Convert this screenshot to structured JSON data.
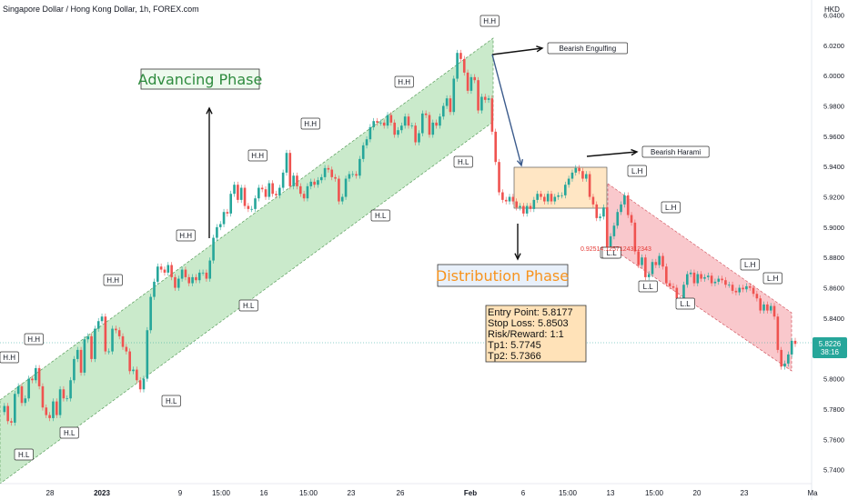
{
  "header": {
    "title": "Singapore Dollar / Hong Kong Dollar, 1h, FOREX.com",
    "currency": "HKD"
  },
  "chart_data": {
    "type": "line",
    "title": "Singapore Dollar / Hong Kong Dollar, 1h, FOREX.com",
    "ylabel": "HKD",
    "ylim": [
      5.735,
      6.045
    ],
    "y_ticks": [
      "6.0400",
      "6.0200",
      "6.0000",
      "5.9800",
      "5.9600",
      "5.9400",
      "5.9200",
      "5.9000",
      "5.8800",
      "5.8600",
      "5.8400",
      "5.8200",
      "5.8000",
      "5.7800",
      "5.7600",
      "5.7400"
    ],
    "x_ticks": [
      "28",
      "2023",
      "9",
      "15:00",
      "16",
      "15:00",
      "23",
      "26",
      "Feb",
      "6",
      "15:00",
      "13",
      "15:00",
      "20",
      "23",
      "Ma"
    ],
    "series": [
      {
        "values": [
          5.778,
          5.782,
          5.772,
          5.771,
          5.79,
          5.795,
          5.784,
          5.787,
          5.8,
          5.799,
          5.807,
          5.795,
          5.781,
          5.776,
          5.774,
          5.785,
          5.776,
          5.793,
          5.787,
          5.787,
          5.799,
          5.813,
          5.819,
          5.804,
          5.826,
          5.828,
          5.813,
          5.833,
          5.838,
          5.841,
          5.818,
          5.818,
          5.833,
          5.832,
          5.828,
          5.821,
          5.818,
          5.805,
          5.806,
          5.799,
          5.793,
          5.8,
          5.832,
          5.854,
          5.864,
          5.874,
          5.872,
          5.87,
          5.875,
          5.867,
          5.86,
          5.866,
          5.872,
          5.867,
          5.863,
          5.867,
          5.865,
          5.87,
          5.87,
          5.866,
          5.878,
          5.893,
          5.9,
          5.902,
          5.91,
          5.909,
          5.922,
          5.928,
          5.918,
          5.926,
          5.914,
          5.912,
          5.912,
          5.919,
          5.926,
          5.925,
          5.92,
          5.929,
          5.922,
          5.921,
          5.926,
          5.936,
          5.949,
          5.927,
          5.934,
          5.927,
          5.922,
          5.919,
          5.927,
          5.93,
          5.928,
          5.931,
          5.933,
          5.939,
          5.938,
          5.933,
          5.932,
          5.917,
          5.92,
          5.932,
          5.935,
          5.935,
          5.934,
          5.945,
          5.954,
          5.958,
          5.966,
          5.97,
          5.969,
          5.969,
          5.967,
          5.974,
          5.969,
          5.961,
          5.964,
          5.967,
          5.973,
          5.967,
          5.967,
          5.956,
          5.962,
          5.975,
          5.974,
          5.961,
          5.969,
          5.967,
          5.973,
          5.98,
          5.985,
          5.976,
          5.998,
          6.015,
          6.011,
          6.002,
          5.99,
          5.999,
          5.997,
          5.977,
          5.986,
          5.984,
          5.985,
          5.963,
          5.943,
          5.923,
          5.918,
          5.917,
          5.92,
          5.917,
          5.913,
          5.914,
          5.909,
          5.914,
          5.912,
          5.918,
          5.922,
          5.92,
          5.917,
          5.922,
          5.917,
          5.92,
          5.921,
          5.921,
          5.928,
          5.932,
          5.936,
          5.939,
          5.937,
          5.932,
          5.935,
          5.92,
          5.915,
          5.906,
          5.907,
          5.913,
          5.886,
          5.894,
          5.901,
          5.91,
          5.915,
          5.921,
          5.908,
          5.903,
          5.884,
          5.875,
          5.88,
          5.867,
          5.869,
          5.877,
          5.875,
          5.881,
          5.874,
          5.863,
          5.861,
          5.86,
          5.853,
          5.85,
          5.862,
          5.869,
          5.87,
          5.863,
          5.869,
          5.866,
          5.867,
          5.868,
          5.863,
          5.864,
          5.866,
          5.865,
          5.862,
          5.862,
          5.858,
          5.857,
          5.86,
          5.859,
          5.861,
          5.86,
          5.856,
          5.853,
          5.845,
          5.849,
          5.845,
          5.848,
          5.841,
          5.819,
          5.808,
          5.81,
          5.816,
          5.825,
          5.823
        ]
      }
    ],
    "current_price": "5.8226",
    "countdown": "38:16",
    "channels": [
      {
        "name": "Advancing Phase",
        "color": "#9fd9a0"
      },
      {
        "name": "Distribution Phase",
        "color": "#f5a3aa"
      }
    ],
    "annotations": {
      "phase_labels": [
        "Advancing Phase",
        "Distribution Phase"
      ],
      "pattern_labels": [
        "Bearish Engulfing",
        "Bearish Harami"
      ],
      "swing_labels": [
        "H.H",
        "H.H",
        "H.H",
        "H.H",
        "H.H",
        "H.H",
        "H.H",
        "H.H",
        "H.L",
        "H.L",
        "H.L",
        "H.L",
        "H.L",
        "H.L",
        "H.L",
        "L.H",
        "L.H",
        "L.H",
        "L.H",
        "L.L",
        "L.L",
        "L.L",
        "L.L"
      ],
      "red_value": "0.92514.1257124312343",
      "trade_box": [
        "Entry Point: 5.8177",
        "Stop Loss: 5.8503",
        "Risk/Reward: 1:1",
        "Tp1: 5.7745",
        "Tp2: 5.7366"
      ]
    },
    "colors": {
      "up": "#26a69a",
      "down": "#ef5350",
      "advancing_text": "#2e8b3e",
      "distribution_text": "#f7931e",
      "trade_box_bg": "#ffe2b8",
      "price_tag": "#26a69a"
    }
  }
}
